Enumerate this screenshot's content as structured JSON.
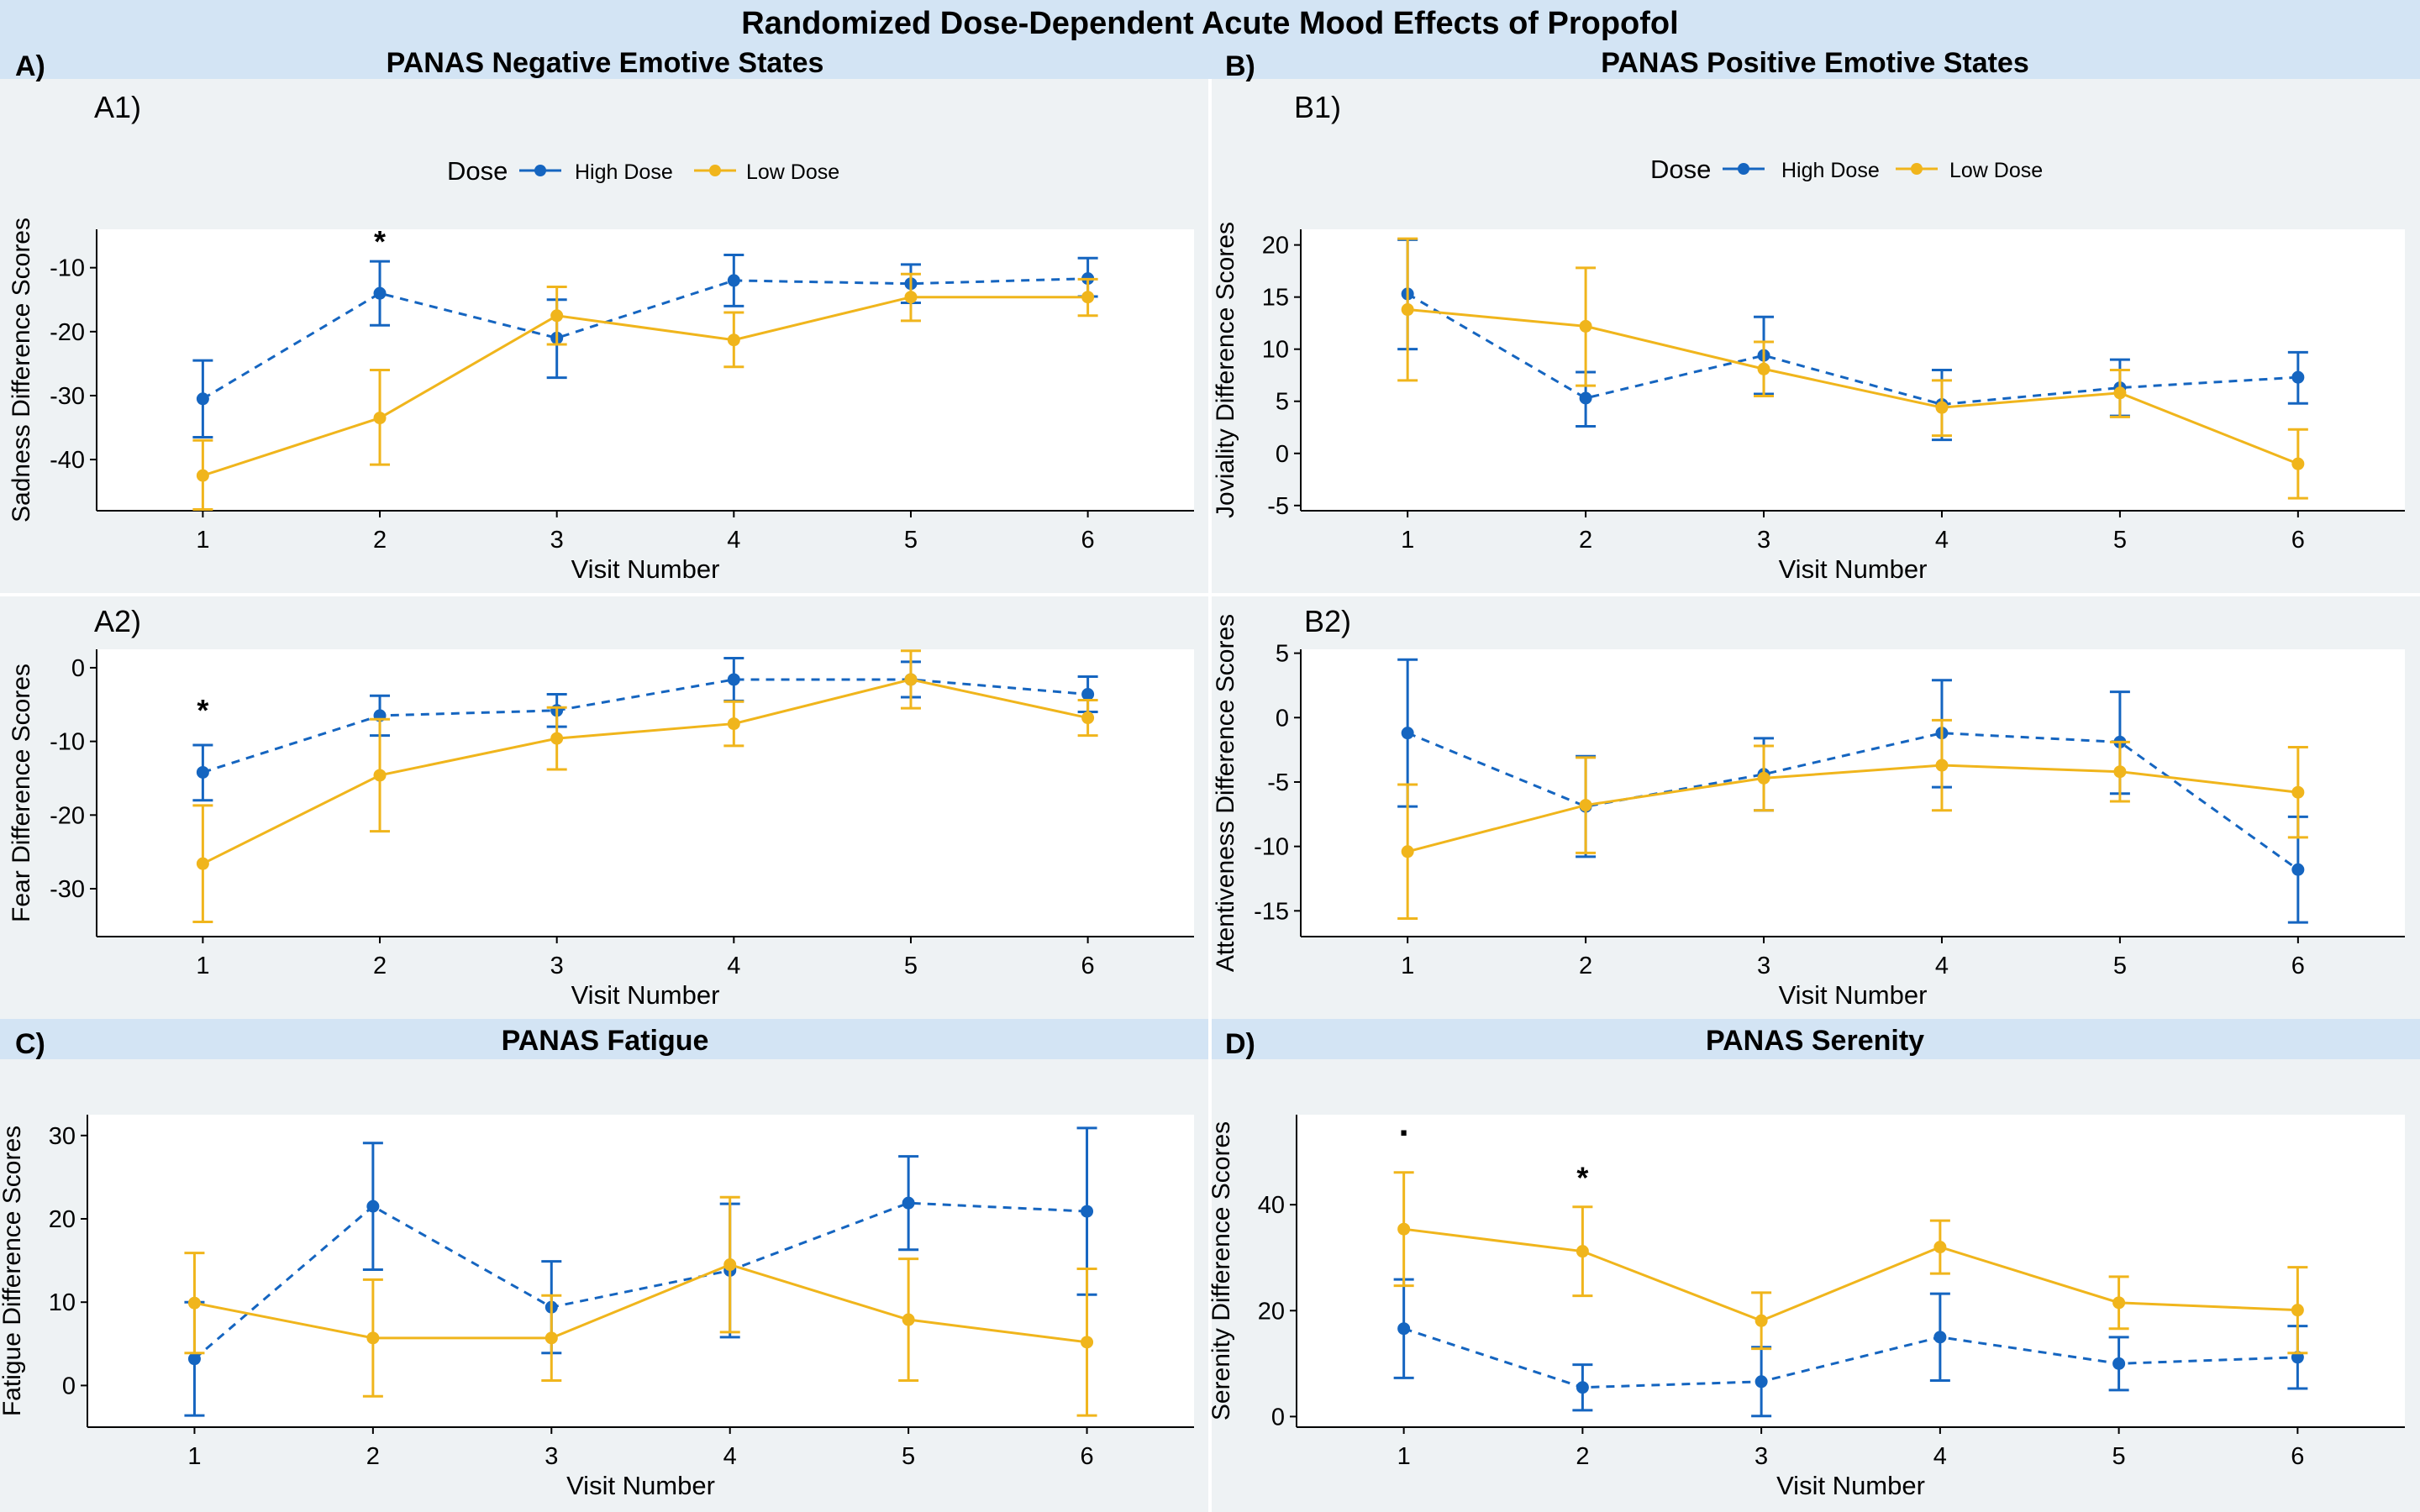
{
  "title": "Randomized Dose-Dependent Acute Mood Effects of Propofol",
  "colors": {
    "high_dose": "#1565C0",
    "low_dose": "#F0B51C",
    "header_band": "#d3e4f4",
    "panel_bg": "#eef2f4",
    "plot_bg": "#ffffff",
    "separator": "#ffffff"
  },
  "legend": {
    "title": "Dose",
    "items": [
      {
        "label": "High Dose",
        "color": "#1565C0",
        "line": "dashed"
      },
      {
        "label": "Low Dose",
        "color": "#F0B51C",
        "line": "solid"
      }
    ]
  },
  "sections": [
    {
      "id": "A",
      "letter": "A)",
      "heading": "PANAS Negative Emotive States"
    },
    {
      "id": "B",
      "letter": "B)",
      "heading": "PANAS Positive Emotive States"
    },
    {
      "id": "C",
      "letter": "C)",
      "heading": "PANAS Fatigue"
    },
    {
      "id": "D",
      "letter": "D)",
      "heading": "PANAS Serenity"
    }
  ],
  "chart_data": [
    {
      "id": "A1",
      "panel_label": "A1)",
      "type": "line",
      "xlabel": "Visit Number",
      "ylabel": "Sadness Difference Scores",
      "x": [
        1,
        2,
        3,
        4,
        5,
        6
      ],
      "xlim": [
        0.4,
        6.6
      ],
      "ylim": [
        -48,
        -4
      ],
      "yticks": [
        -10,
        -20,
        -30,
        -40
      ],
      "significance": [
        {
          "x": 2,
          "y": -6,
          "label": "*"
        }
      ],
      "series": [
        {
          "name": "High Dose",
          "line": "dashed",
          "values": [
            -30.5,
            -14,
            -21,
            -12,
            -12.5,
            -11.7
          ],
          "lower": [
            -36.5,
            -19,
            -27.2,
            -16,
            -15.5,
            -14.5
          ],
          "upper": [
            -24.5,
            -9,
            -15,
            -8,
            -9.5,
            -8.5
          ]
        },
        {
          "name": "Low Dose",
          "line": "solid",
          "values": [
            -42.5,
            -33.5,
            -17.5,
            -21.3,
            -14.6,
            -14.6
          ],
          "lower": [
            -47.8,
            -40.8,
            -22,
            -25.5,
            -18.3,
            -17.5
          ],
          "upper": [
            -37,
            -26,
            -13,
            -17,
            -11,
            -11.8
          ]
        }
      ]
    },
    {
      "id": "B1",
      "panel_label": "B1)",
      "type": "line",
      "xlabel": "Visit Number",
      "ylabel": "Joviality Difference Scores",
      "x": [
        1,
        2,
        3,
        4,
        5,
        6
      ],
      "xlim": [
        0.4,
        6.6
      ],
      "ylim": [
        -5.5,
        21.5
      ],
      "yticks": [
        20,
        15,
        10,
        5,
        0,
        -5
      ],
      "significance": [],
      "series": [
        {
          "name": "High Dose",
          "line": "dashed",
          "values": [
            15.3,
            5.3,
            9.4,
            4.7,
            6.3,
            7.3
          ],
          "lower": [
            10,
            2.6,
            5.7,
            1.3,
            3.6,
            4.8
          ],
          "upper": [
            20.5,
            7.8,
            13.1,
            8,
            9,
            9.7
          ]
        },
        {
          "name": "Low Dose",
          "line": "solid",
          "values": [
            13.8,
            12.2,
            8.1,
            4.4,
            5.8,
            -1
          ],
          "lower": [
            7,
            6.5,
            5.5,
            1.7,
            3.5,
            -4.3
          ],
          "upper": [
            20.6,
            17.8,
            10.7,
            7,
            8,
            2.3
          ]
        }
      ]
    },
    {
      "id": "A2",
      "panel_label": "A2)",
      "type": "line",
      "xlabel": "Visit Number",
      "ylabel": "Fear Difference Scores",
      "x": [
        1,
        2,
        3,
        4,
        5,
        6
      ],
      "xlim": [
        0.4,
        6.6
      ],
      "ylim": [
        -36.5,
        2.5
      ],
      "yticks": [
        0,
        -10,
        -20,
        -30
      ],
      "significance": [
        {
          "x": 1,
          "y": -5.8,
          "label": "*"
        }
      ],
      "series": [
        {
          "name": "High Dose",
          "line": "dashed",
          "values": [
            -14.2,
            -6.5,
            -5.8,
            -1.6,
            -1.6,
            -3.6
          ],
          "lower": [
            -18,
            -9.2,
            -8,
            -4.5,
            -4,
            -6
          ],
          "upper": [
            -10.5,
            -3.8,
            -3.6,
            1.3,
            0.8,
            -1.2
          ]
        },
        {
          "name": "Low Dose",
          "line": "solid",
          "values": [
            -26.6,
            -14.6,
            -9.6,
            -7.6,
            -1.6,
            -6.8
          ],
          "lower": [
            -34.5,
            -22.2,
            -13.8,
            -10.6,
            -5.5,
            -9.2
          ],
          "upper": [
            -18.7,
            -7,
            -5.4,
            -4.6,
            2.3,
            -4.4
          ]
        }
      ]
    },
    {
      "id": "B2",
      "panel_label": "B2)",
      "type": "line",
      "xlabel": "Visit Number",
      "ylabel": "Attentiveness Difference Scores",
      "x": [
        1,
        2,
        3,
        4,
        5,
        6
      ],
      "xlim": [
        0.4,
        6.6
      ],
      "ylim": [
        -17,
        5.3
      ],
      "yticks": [
        5,
        0,
        -5,
        -10,
        -15
      ],
      "significance": [],
      "series": [
        {
          "name": "High Dose",
          "line": "dashed",
          "values": [
            -1.2,
            -6.9,
            -4.4,
            -1.2,
            -1.9,
            -11.8
          ],
          "lower": [
            -6.9,
            -10.8,
            -7.2,
            -5.4,
            -5.9,
            -15.9
          ],
          "upper": [
            4.5,
            -3,
            -1.6,
            2.9,
            2,
            -7.7
          ]
        },
        {
          "name": "Low Dose",
          "line": "solid",
          "values": [
            -10.4,
            -6.8,
            -4.7,
            -3.7,
            -4.2,
            -5.8
          ],
          "lower": [
            -15.6,
            -10.5,
            -7.2,
            -7.2,
            -6.5,
            -9.3
          ],
          "upper": [
            -5.2,
            -3.1,
            -2.2,
            -0.2,
            -1.9,
            -2.3
          ]
        }
      ]
    },
    {
      "id": "C",
      "panel_label": "",
      "type": "line",
      "xlabel": "Visit Number",
      "ylabel": "Fatigue Difference Scores",
      "x": [
        1,
        2,
        3,
        4,
        5,
        6
      ],
      "xlim": [
        0.4,
        6.6
      ],
      "ylim": [
        -5,
        32.5
      ],
      "yticks": [
        30,
        20,
        10,
        0
      ],
      "significance": [],
      "series": [
        {
          "name": "High Dose",
          "line": "dashed",
          "values": [
            3.2,
            21.5,
            9.4,
            13.8,
            21.9,
            20.9
          ],
          "lower": [
            -3.6,
            13.9,
            3.9,
            5.8,
            16.3,
            10.9
          ],
          "upper": [
            10,
            29.1,
            14.9,
            21.8,
            27.5,
            30.9
          ]
        },
        {
          "name": "Low Dose",
          "line": "solid",
          "values": [
            9.9,
            5.7,
            5.7,
            14.5,
            7.9,
            5.2
          ],
          "lower": [
            3.9,
            -1.3,
            0.6,
            6.4,
            0.6,
            -3.6
          ],
          "upper": [
            15.9,
            12.7,
            10.8,
            22.6,
            15.2,
            14
          ]
        }
      ]
    },
    {
      "id": "D",
      "panel_label": "",
      "type": "line",
      "xlabel": "Visit Number",
      "ylabel": "Serenity Difference Scores",
      "x": [
        1,
        2,
        3,
        4,
        5,
        6
      ],
      "xlim": [
        0.4,
        6.6
      ],
      "ylim": [
        -2,
        57
      ],
      "yticks": [
        40,
        20,
        0
      ],
      "significance": [
        {
          "x": 1,
          "y": 53,
          "label": "."
        },
        {
          "x": 2,
          "y": 45,
          "label": "*"
        }
      ],
      "series": [
        {
          "name": "High Dose",
          "line": "dashed",
          "values": [
            16.6,
            5.5,
            6.6,
            15,
            10,
            11.2
          ],
          "lower": [
            7.3,
            1.2,
            0.1,
            6.8,
            5,
            5.3
          ],
          "upper": [
            25.9,
            9.8,
            13.1,
            23.2,
            15,
            17.1
          ]
        },
        {
          "name": "Low Dose",
          "line": "solid",
          "values": [
            35.4,
            31.2,
            18.1,
            32,
            21.5,
            20.1
          ],
          "lower": [
            24.7,
            22.8,
            12.8,
            27,
            16.6,
            12
          ],
          "upper": [
            46.1,
            39.6,
            23.4,
            37,
            26.4,
            28.2
          ]
        }
      ]
    }
  ]
}
